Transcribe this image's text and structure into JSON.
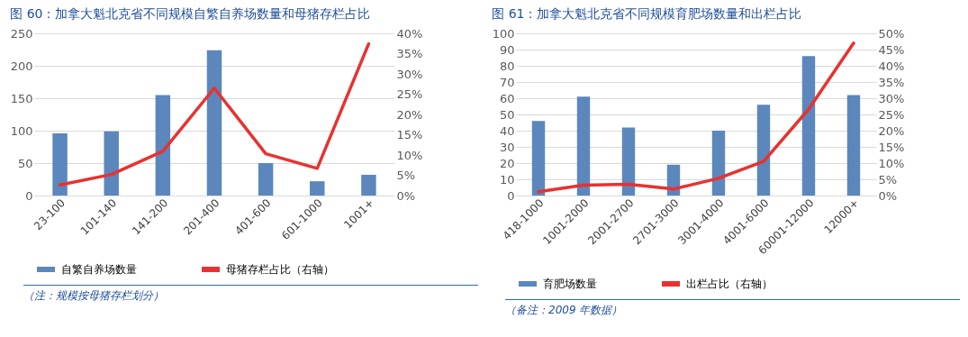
{
  "chart_data": [
    {
      "type": "bar",
      "title": "图 60：加拿大魁北克省不同规模自繁自养场数量和母猪存栏占比",
      "categories": [
        "23-100",
        "101-140",
        "141-200",
        "201-400",
        "401-600",
        "601-1000",
        "1001+"
      ],
      "series": [
        {
          "name": "自繁自养场数量",
          "color": "#5b87bd",
          "values": [
            96,
            99,
            155,
            224,
            50,
            22,
            32
          ]
        },
        {
          "name": "母猪存栏占比（右轴）",
          "type": "line",
          "axis": "y2",
          "color": "#e8322f",
          "values": [
            2.6,
            5.2,
            10.9,
            26.5,
            10.3,
            6.7,
            37.4
          ]
        }
      ],
      "ylim": [
        0,
        250
      ],
      "yticks": [
        0,
        50,
        100,
        150,
        200,
        250
      ],
      "y2lim": [
        0,
        40
      ],
      "y2ticks": [
        {
          "value": 0,
          "label": "0%"
        },
        {
          "value": 5,
          "label": "5%"
        },
        {
          "value": 10,
          "label": "10%"
        },
        {
          "value": 15,
          "label": "15%"
        },
        {
          "value": 20,
          "label": "20%"
        },
        {
          "value": 25,
          "label": "25%"
        },
        {
          "value": 30,
          "label": "30%"
        },
        {
          "value": 35,
          "label": "35%"
        },
        {
          "value": 40,
          "label": "40%"
        }
      ],
      "grid": "y",
      "legend": "bottom",
      "annotations": [
        "（注：规模按母猪存栏划分）"
      ]
    },
    {
      "type": "bar",
      "title": "图 61：加拿大魁北克省不同规模育肥场数量和出栏占比",
      "categories": [
        "418-1000",
        "1001-2000",
        "2001-2700",
        "2701-3000",
        "3001-4000",
        "4001-6000",
        "60001-12000",
        "12000+"
      ],
      "series": [
        {
          "name": "育肥场数量",
          "color": "#5b87bd",
          "values": [
            46,
            61,
            42,
            19,
            40,
            56,
            86,
            62
          ]
        },
        {
          "name": "出栏占比（右轴）",
          "type": "line",
          "axis": "y2",
          "color": "#e8322f",
          "values": [
            1.2,
            3.2,
            3.5,
            2.0,
            5.3,
            10.5,
            26.6,
            47
          ]
        }
      ],
      "ylim": [
        0,
        100
      ],
      "yticks": [
        0,
        10,
        20,
        30,
        40,
        50,
        60,
        70,
        80,
        90,
        100
      ],
      "y2lim": [
        0,
        50
      ],
      "y2ticks": [
        {
          "value": 0,
          "label": "0%"
        },
        {
          "value": 5,
          "label": "5%"
        },
        {
          "value": 10,
          "label": "10%"
        },
        {
          "value": 15,
          "label": "15%"
        },
        {
          "value": 20,
          "label": "20%"
        },
        {
          "value": 25,
          "label": "25%"
        },
        {
          "value": 30,
          "label": "30%"
        },
        {
          "value": 35,
          "label": "35%"
        },
        {
          "value": 40,
          "label": "40%"
        },
        {
          "value": 45,
          "label": "45%"
        },
        {
          "value": 50,
          "label": "50%"
        }
      ],
      "grid": "y",
      "legend": "bottom",
      "annotations": [
        "（备注：2009 年数据）"
      ]
    }
  ]
}
